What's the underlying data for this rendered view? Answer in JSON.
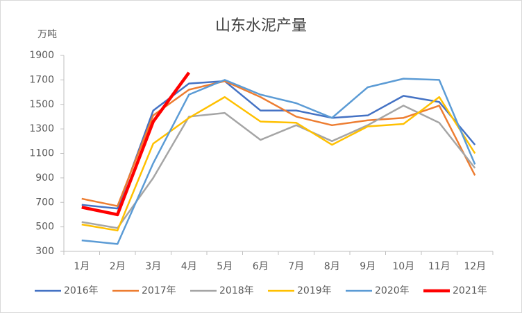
{
  "chart_data": {
    "type": "line",
    "title": "山东水泥产量",
    "y_label": "万吨",
    "categories": [
      "1月",
      "2月",
      "3月",
      "4月",
      "5月",
      "6月",
      "7月",
      "8月",
      "9月",
      "10月",
      "11月",
      "12月"
    ],
    "series": [
      {
        "name": "2016年",
        "color": "#4472c4",
        "width": 2.5,
        "values": [
          680,
          650,
          1450,
          1670,
          1690,
          1450,
          1450,
          1390,
          1410,
          1570,
          1520,
          1170
        ]
      },
      {
        "name": "2017年",
        "color": "#ed7d31",
        "width": 2.5,
        "values": [
          730,
          670,
          1410,
          1620,
          1690,
          1560,
          1400,
          1330,
          1370,
          1390,
          1490,
          920
        ]
      },
      {
        "name": "2018年",
        "color": "#a5a5a5",
        "width": 2.5,
        "values": [
          540,
          490,
          900,
          1400,
          1430,
          1210,
          1330,
          1200,
          1330,
          1490,
          1350,
          980
        ]
      },
      {
        "name": "2019年",
        "color": "#ffc000",
        "width": 2.5,
        "values": [
          520,
          470,
          1180,
          1390,
          1560,
          1360,
          1350,
          1170,
          1320,
          1340,
          1560,
          1100
        ]
      },
      {
        "name": "2020年",
        "color": "#5b9bd5",
        "width": 2.5,
        "values": [
          390,
          360,
          1020,
          1580,
          1700,
          1580,
          1510,
          1390,
          1640,
          1710,
          1700,
          1010
        ]
      },
      {
        "name": "2021年",
        "color": "#ff0000",
        "width": 4.5,
        "values": [
          660,
          600,
          1360,
          1760,
          null,
          null,
          null,
          null,
          null,
          null,
          null,
          null
        ]
      }
    ],
    "ylim": [
      300,
      1900
    ],
    "yticks": [
      300,
      500,
      700,
      900,
      1100,
      1300,
      1500,
      1700,
      1900
    ],
    "grid": false,
    "legend": "bottom"
  }
}
